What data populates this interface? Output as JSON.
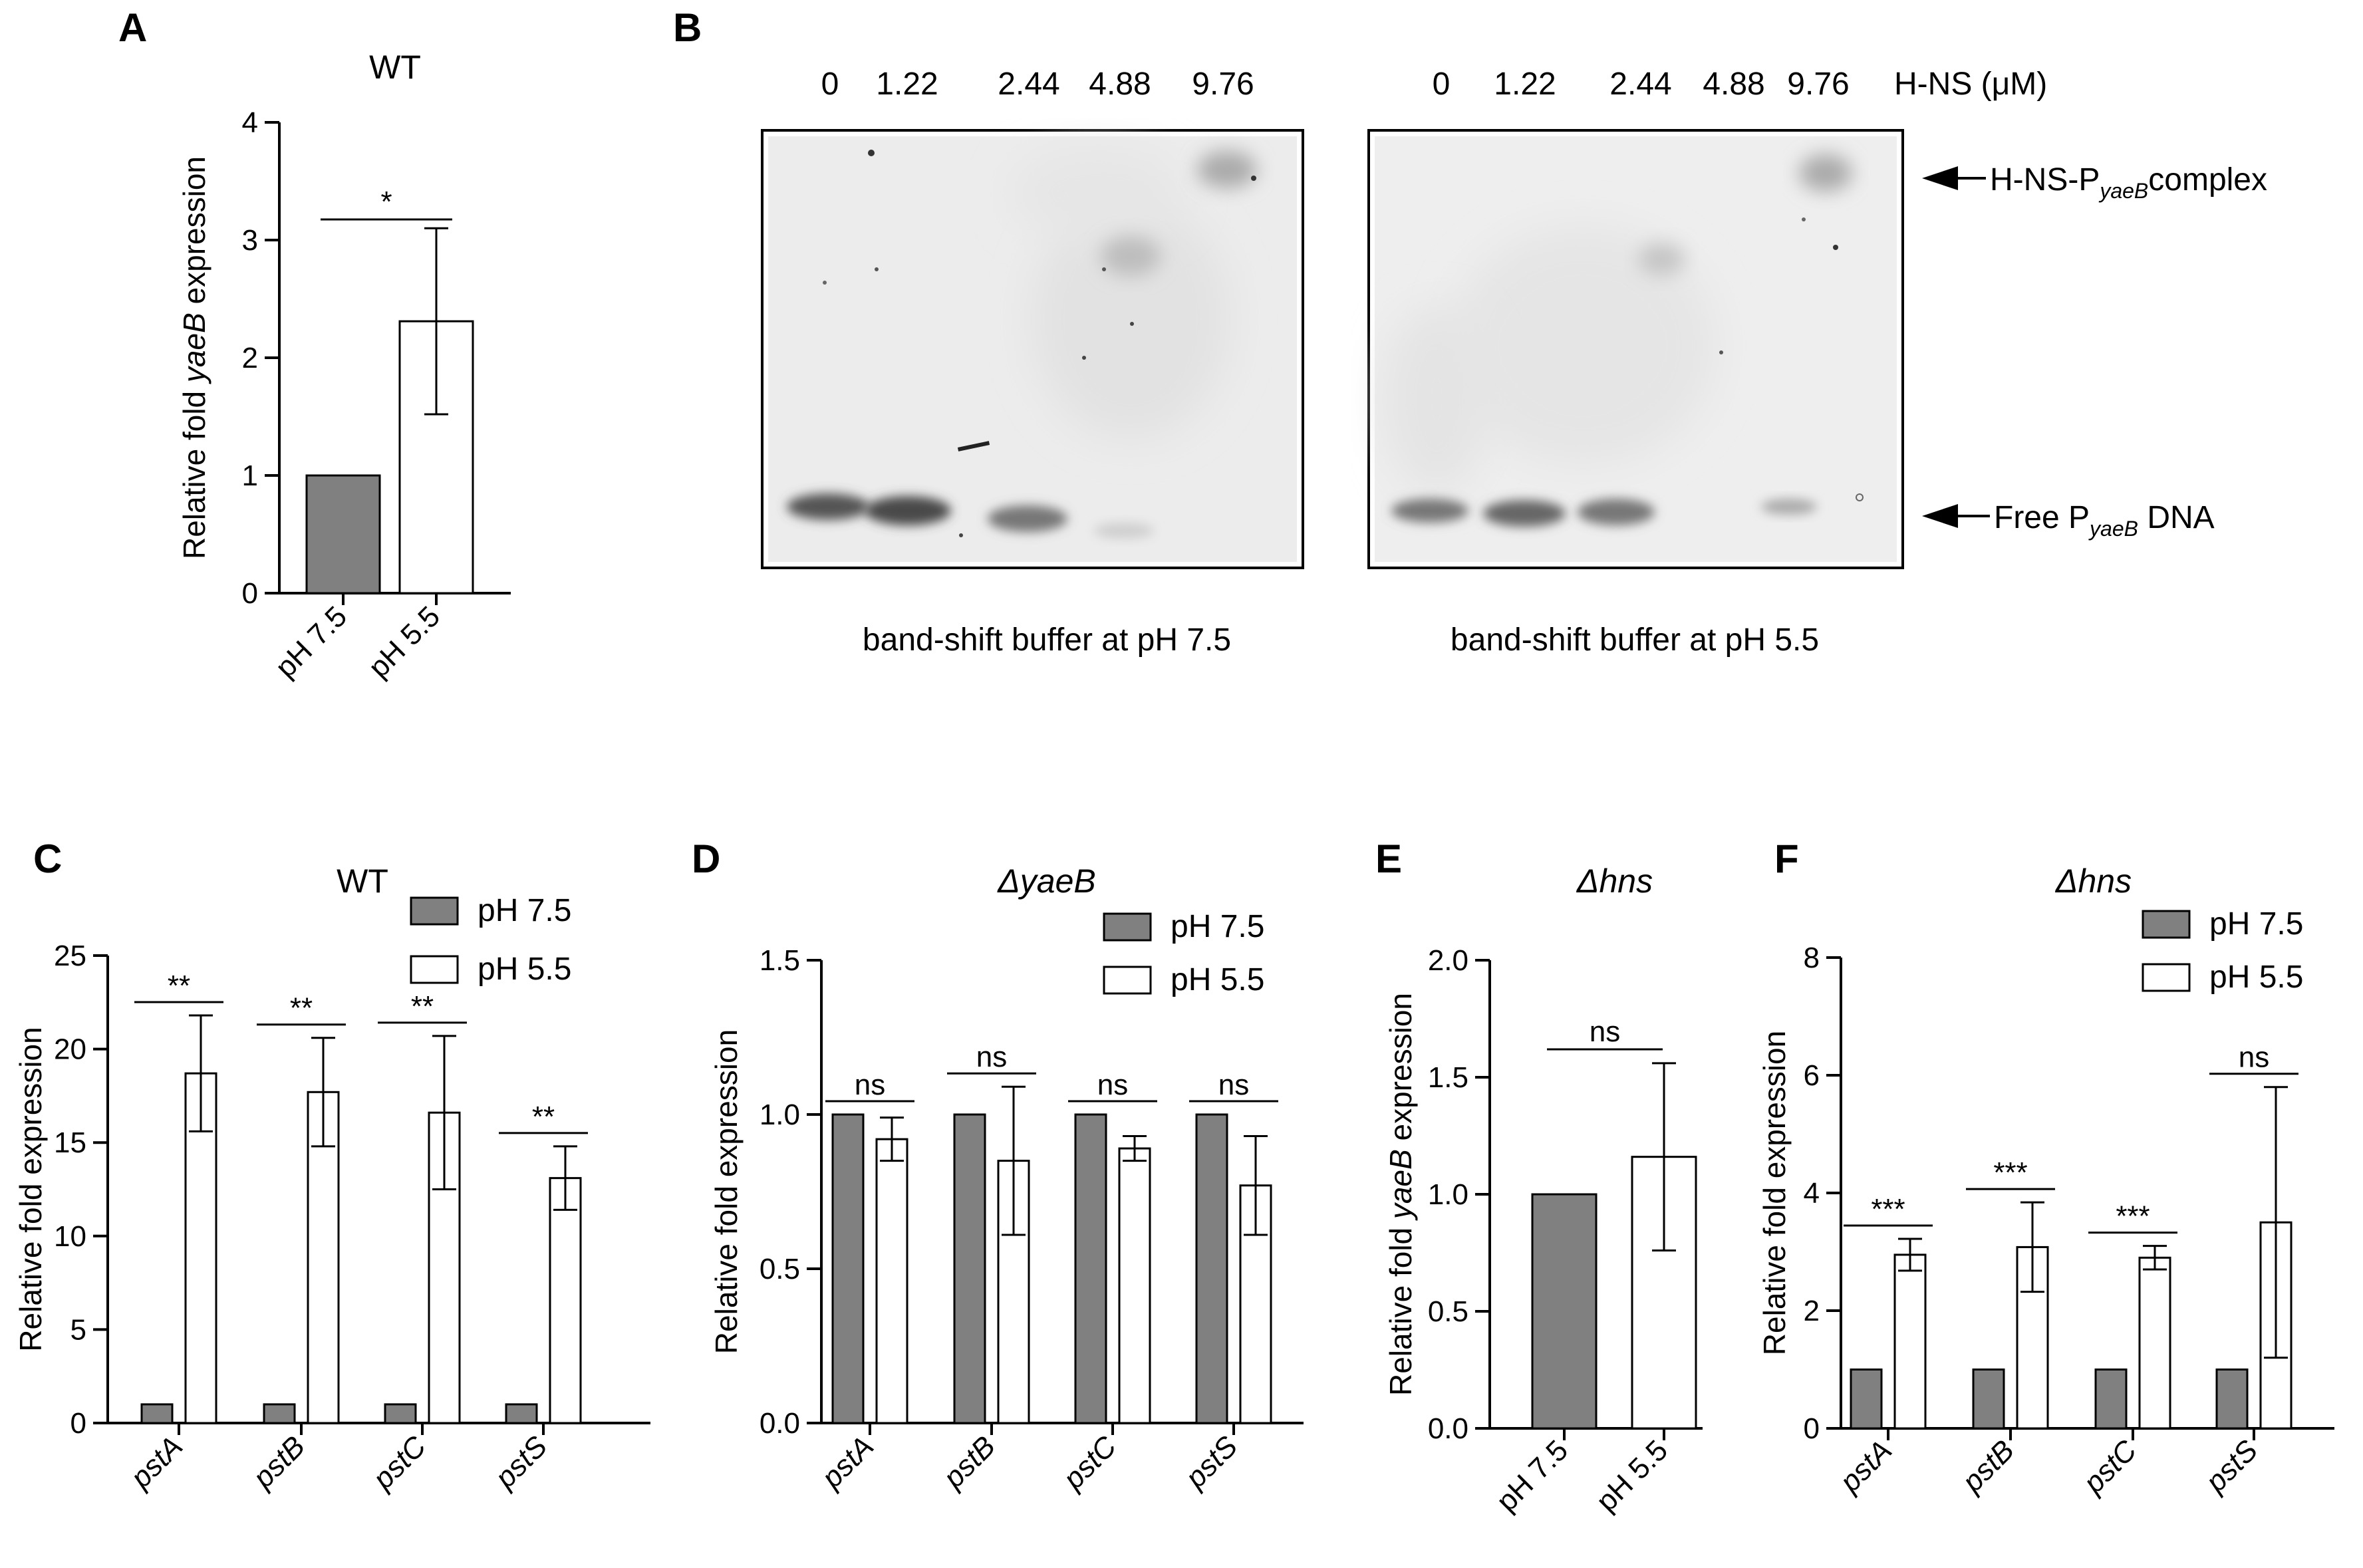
{
  "panels": {
    "A": {
      "letter": "A"
    },
    "B": {
      "letter": "B",
      "concentrations": [
        "0",
        "1.22",
        "2.44",
        "4.88",
        "9.76"
      ],
      "conc_unit": "H-NS (μM)",
      "complex_label": {
        "pre": "H-NS-P",
        "sub": "yaeB",
        "post": "complex"
      },
      "free_label": {
        "pre": "Free P",
        "sub": "yaeB",
        "post": " DNA"
      },
      "captions": [
        "band-shift buffer at pH 7.5",
        "band-shift buffer at pH 5.5"
      ]
    },
    "C": {
      "letter": "C"
    },
    "D": {
      "letter": "D"
    },
    "E": {
      "letter": "E"
    },
    "F": {
      "letter": "F"
    }
  },
  "colors": {
    "ph75": "#808080",
    "ph55": "#ffffff",
    "axis": "#000000"
  },
  "chart_data": [
    {
      "id": "A",
      "type": "bar",
      "title": "WT",
      "title_italic": false,
      "ylabel": {
        "pre": "Relative fold ",
        "it": "yaeB",
        "post": " expression"
      },
      "ylim": [
        0,
        4
      ],
      "yticks": [
        "0",
        "1",
        "2",
        "3",
        "4"
      ],
      "categories": [
        "pH 7.5",
        "pH 5.5"
      ],
      "cat_italic": false,
      "values": [
        1.0,
        2.31
      ],
      "errors": [
        0,
        0.79
      ],
      "sig": [
        "*"
      ]
    },
    {
      "id": "C",
      "type": "bar",
      "title": "WT",
      "title_italic": false,
      "ylabel": {
        "pre": "Relative fold expression",
        "it": "",
        "post": ""
      },
      "ylim": [
        0,
        25
      ],
      "yticks": [
        "0",
        "5",
        "10",
        "15",
        "20",
        "25"
      ],
      "categories": [
        "pstA",
        "pstB",
        "pstC",
        "pstS"
      ],
      "cat_italic": true,
      "legend": [
        "pH 7.5",
        "pH 5.5"
      ],
      "series": [
        {
          "name": "pH 7.5",
          "values": [
            1.0,
            1.0,
            1.0,
            1.0
          ],
          "errors": [
            0,
            0,
            0,
            0
          ]
        },
        {
          "name": "pH 5.5",
          "values": [
            18.7,
            17.7,
            16.6,
            13.1
          ],
          "errors": [
            3.1,
            2.9,
            4.1,
            1.7
          ]
        }
      ],
      "sig": [
        "**",
        "**",
        "**",
        "**"
      ]
    },
    {
      "id": "D",
      "type": "bar",
      "title": "ΔyaeB",
      "title_italic": true,
      "ylabel": {
        "pre": "Relative fold expression",
        "it": "",
        "post": ""
      },
      "ylim": [
        0,
        1.5
      ],
      "yticks": [
        "0.0",
        "0.5",
        "1.0",
        "1.5"
      ],
      "categories": [
        "pstA",
        "pstB",
        "pstC",
        "pstS"
      ],
      "cat_italic": true,
      "legend": [
        "pH 7.5",
        "pH 5.5"
      ],
      "series": [
        {
          "name": "pH 7.5",
          "values": [
            1.0,
            1.0,
            1.0,
            1.0
          ],
          "errors": [
            0,
            0,
            0,
            0
          ]
        },
        {
          "name": "pH 5.5",
          "values": [
            0.92,
            0.85,
            0.89,
            0.77
          ],
          "errors": [
            0.07,
            0.24,
            0.04,
            0.16
          ]
        }
      ],
      "sig": [
        "ns",
        "ns",
        "ns",
        "ns"
      ]
    },
    {
      "id": "E",
      "type": "bar",
      "title": "Δhns",
      "title_italic": true,
      "ylabel": {
        "pre": "Relative fold  ",
        "it": "yaeB",
        "post": " expression"
      },
      "ylim": [
        0,
        2.0
      ],
      "yticks": [
        "0.0",
        "0.5",
        "1.0",
        "1.5",
        "2.0"
      ],
      "categories": [
        "pH 7.5",
        "pH 5.5"
      ],
      "cat_italic": false,
      "values": [
        1.0,
        1.16
      ],
      "errors": [
        0,
        0.4
      ],
      "sig": [
        "ns"
      ]
    },
    {
      "id": "F",
      "type": "bar",
      "title": "Δhns",
      "title_italic": true,
      "ylabel": {
        "pre": "Relative fold  expression",
        "it": "",
        "post": ""
      },
      "ylim": [
        0,
        8
      ],
      "yticks": [
        "0",
        "2",
        "4",
        "6",
        "8"
      ],
      "categories": [
        "pstA",
        "pstB",
        "pstC",
        "pstS"
      ],
      "cat_italic": true,
      "legend": [
        "pH 7.5",
        "pH 5.5"
      ],
      "series": [
        {
          "name": "pH 7.5",
          "values": [
            1.0,
            1.0,
            1.0,
            1.0
          ],
          "errors": [
            0,
            0,
            0,
            0
          ]
        },
        {
          "name": "pH 5.5",
          "values": [
            2.95,
            3.08,
            2.9,
            3.5
          ],
          "errors": [
            0.27,
            0.76,
            0.2,
            2.3
          ]
        }
      ],
      "sig": [
        "***",
        "***",
        "***",
        "ns"
      ]
    }
  ]
}
